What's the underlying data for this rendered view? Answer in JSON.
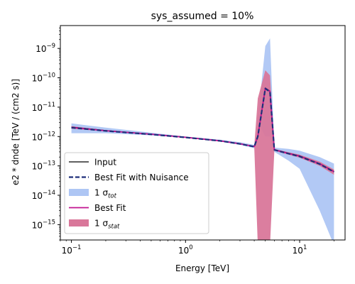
{
  "chart_data": {
    "type": "line",
    "title": "sys_assumed = 10%",
    "xlabel": "Energy [TeV]",
    "ylabel": "e2 * dnde [TeV / (cm2 s)]",
    "xscale": "log",
    "yscale": "log",
    "xlim": [
      0.08,
      25
    ],
    "ylim": [
      3e-16,
      6e-09
    ],
    "grid": false,
    "legend_position": "lower-left",
    "x_tick_labels": [
      {
        "value": 0.1,
        "base": "10",
        "exp": "−1"
      },
      {
        "value": 1,
        "base": "10",
        "exp": "0"
      },
      {
        "value": 10,
        "base": "10",
        "exp": "1"
      }
    ],
    "y_tick_labels": [
      {
        "value": 1e-15,
        "base": "10",
        "exp": "−15"
      },
      {
        "value": 1e-14,
        "base": "10",
        "exp": "−14"
      },
      {
        "value": 1e-13,
        "base": "10",
        "exp": "−13"
      },
      {
        "value": 1e-12,
        "base": "10",
        "exp": "−12"
      },
      {
        "value": 1e-11,
        "base": "10",
        "exp": "−11"
      },
      {
        "value": 1e-10,
        "base": "10",
        "exp": "−10"
      },
      {
        "value": 1e-09,
        "base": "10",
        "exp": "−9"
      }
    ],
    "x": [
      0.1,
      0.2,
      0.5,
      1,
      2,
      3,
      4,
      4.3,
      5,
      5.5,
      6,
      8,
      10,
      15,
      20
    ],
    "series": [
      {
        "name": "Input",
        "kind": "line",
        "color": "#000000",
        "values": [
          2.1e-12,
          1.6e-12,
          1.2e-12,
          9.5e-13,
          7.2e-13,
          5.7e-13,
          4.6e-13,
          1e-12,
          4.5e-11,
          3.5e-11,
          3.6e-13,
          2.7e-13,
          2.2e-13,
          1.2e-13,
          6.5e-14
        ]
      },
      {
        "name": "Best Fit with Nuisance",
        "kind": "dashed",
        "color": "#1f2f7a",
        "values": [
          2e-12,
          1.55e-12,
          1.18e-12,
          9.3e-13,
          7.1e-13,
          5.6e-13,
          4.5e-13,
          1e-12,
          4.3e-11,
          3.3e-11,
          3.5e-13,
          2.6e-13,
          2.1e-13,
          1.15e-13,
          6.2e-14
        ]
      },
      {
        "name": "1 σ",
        "sub": "tot",
        "kind": "band",
        "color": "#aec6f4",
        "lower": [
          1.3e-12,
          1.3e-12,
          1.1e-12,
          9e-13,
          6.8e-13,
          5.2e-13,
          4e-13,
          3e-12,
          1e-12,
          1e-12,
          3e-13,
          1.5e-13,
          8e-14,
          3e-15,
          2e-16
        ],
        "upper": [
          2.8e-12,
          2e-12,
          1.35e-12,
          1e-12,
          7.8e-13,
          6.4e-13,
          5.2e-13,
          4e-12,
          1.2e-09,
          2.2e-09,
          4.2e-13,
          3.8e-13,
          3.3e-13,
          2e-13,
          1.2e-13
        ]
      },
      {
        "name": "Best Fit",
        "kind": "line",
        "color": "#c0138f",
        "values": [
          2.05e-12,
          1.58e-12,
          1.2e-12,
          9.4e-13,
          7.15e-13,
          5.65e-13,
          4.55e-13,
          1e-12,
          4.4e-11,
          3.4e-11,
          3.55e-13,
          2.65e-13,
          2.15e-13,
          1.18e-13,
          6.3e-14
        ]
      },
      {
        "name": "1 σ",
        "sub": "stat",
        "kind": "band",
        "color": "#d9779a",
        "lower": [
          1.85e-12,
          1.5e-12,
          1.15e-12,
          9.2e-13,
          7e-13,
          5.5e-13,
          4.4e-13,
          2e-16,
          2e-16,
          2e-16,
          3.3e-13,
          2.4e-13,
          1.9e-13,
          1e-13,
          5e-14
        ],
        "upper": [
          2.25e-12,
          1.65e-12,
          1.25e-12,
          9.7e-13,
          7.3e-13,
          5.8e-13,
          4.7e-13,
          2e-11,
          1.8e-10,
          1.2e-10,
          3.8e-13,
          2.9e-13,
          2.4e-13,
          1.4e-13,
          7.5e-14
        ]
      }
    ],
    "legend_order": [
      "Input",
      "Best Fit with Nuisance",
      "1 σtot",
      "Best Fit",
      "1 σstat"
    ]
  }
}
